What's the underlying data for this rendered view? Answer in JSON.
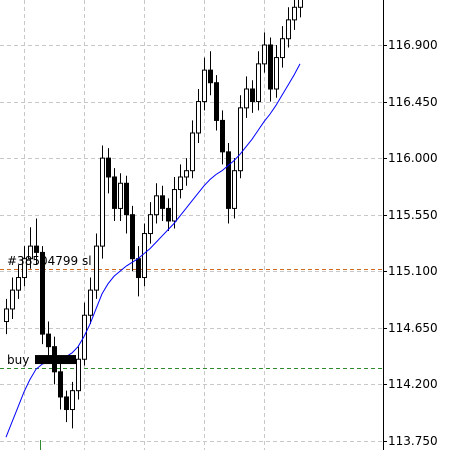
{
  "chart_data": {
    "type": "candlestick",
    "categories": [
      null,
      null,
      null,
      null,
      null,
      null,
      null,
      null,
      null,
      null,
      null,
      null,
      null,
      null,
      null,
      null,
      null,
      null,
      null,
      null,
      null,
      null,
      null,
      null,
      null,
      null,
      null,
      null,
      null,
      null,
      null,
      null,
      null,
      null,
      null,
      null,
      null,
      null,
      null,
      null,
      null,
      null,
      null,
      null,
      null,
      null,
      null,
      null,
      null,
      null
    ],
    "open": [
      114.7,
      114.8,
      114.95,
      115.05,
      115.2,
      115.3,
      115.25,
      114.6,
      114.5,
      114.3,
      114.1,
      114.0,
      114.15,
      114.4,
      114.75,
      114.95,
      115.3,
      116.0,
      115.85,
      115.6,
      115.8,
      115.55,
      115.2,
      115.05,
      115.4,
      115.55,
      115.7,
      115.6,
      115.5,
      115.75,
      115.85,
      115.9,
      116.2,
      116.45,
      116.7,
      116.6,
      116.3,
      116.05,
      115.6,
      115.9,
      116.4,
      116.55,
      116.45,
      116.75,
      116.9,
      116.55,
      116.8,
      116.95,
      117.1,
      117.2
    ],
    "high": [
      114.88,
      115.05,
      115.15,
      115.3,
      115.45,
      115.52,
      115.3,
      114.7,
      114.58,
      114.38,
      114.15,
      114.22,
      114.5,
      114.85,
      115.05,
      115.4,
      116.1,
      116.08,
      115.92,
      115.88,
      115.86,
      115.62,
      115.3,
      115.48,
      115.65,
      115.8,
      115.78,
      115.68,
      115.85,
      115.95,
      116.0,
      116.3,
      116.55,
      116.8,
      116.85,
      116.66,
      116.38,
      116.12,
      116.0,
      116.5,
      116.65,
      116.62,
      116.85,
      117.0,
      116.96,
      116.9,
      117.05,
      117.2,
      117.28,
      117.3
    ],
    "low": [
      114.6,
      114.72,
      114.88,
      114.98,
      115.12,
      115.15,
      114.52,
      114.4,
      114.2,
      114.0,
      113.9,
      113.85,
      114.08,
      114.35,
      114.68,
      114.88,
      115.2,
      115.72,
      115.5,
      115.5,
      115.4,
      115.1,
      114.9,
      114.98,
      115.32,
      115.48,
      115.5,
      115.42,
      115.44,
      115.68,
      115.78,
      115.84,
      116.12,
      116.38,
      116.5,
      116.22,
      115.95,
      115.48,
      115.52,
      115.84,
      116.32,
      116.36,
      116.38,
      116.68,
      116.45,
      116.48,
      116.72,
      116.88,
      117.02,
      117.12
    ],
    "close": [
      114.8,
      114.95,
      115.05,
      115.2,
      115.3,
      115.25,
      114.6,
      114.5,
      114.3,
      114.1,
      114.0,
      114.15,
      114.4,
      114.75,
      114.95,
      115.3,
      116.0,
      115.85,
      115.6,
      115.8,
      115.55,
      115.2,
      115.05,
      115.4,
      115.55,
      115.7,
      115.6,
      115.5,
      115.75,
      115.85,
      115.9,
      116.2,
      116.45,
      116.7,
      116.6,
      116.3,
      116.05,
      115.6,
      115.9,
      116.4,
      116.55,
      116.45,
      116.75,
      116.9,
      116.55,
      116.8,
      116.95,
      117.1,
      117.2,
      117.28
    ],
    "ma": {
      "color": "#0000ff",
      "values": [
        113.78,
        113.9,
        114.02,
        114.14,
        114.24,
        114.32,
        114.36,
        114.38,
        114.39,
        114.4,
        114.42,
        114.45,
        114.5,
        114.58,
        114.68,
        114.8,
        114.92,
        115.0,
        115.06,
        115.1,
        115.14,
        115.17,
        115.2,
        115.24,
        115.28,
        115.33,
        115.38,
        115.43,
        115.48,
        115.54,
        115.6,
        115.66,
        115.72,
        115.78,
        115.83,
        115.87,
        115.9,
        115.94,
        115.98,
        116.03,
        116.09,
        116.15,
        116.22,
        116.29,
        116.35,
        116.42,
        116.5,
        116.58,
        116.66,
        116.75
      ]
    },
    "levels": [
      {
        "label": "#38504799 sl",
        "value": 115.12,
        "color": "#d2691e"
      },
      {
        "label": "buy",
        "value": 114.33,
        "color": "#2e8b2e"
      }
    ],
    "ylim": [
      113.678,
      117.258
    ],
    "yticks": [
      {
        "value": 113.75,
        "label": "113.750"
      },
      {
        "value": 114.2,
        "label": "114.200"
      },
      {
        "value": 114.65,
        "label": "114.650"
      },
      {
        "value": 115.1,
        "label": "115.100"
      },
      {
        "value": 115.55,
        "label": "115.550"
      },
      {
        "value": 116.0,
        "label": "116.000"
      },
      {
        "value": 116.45,
        "label": "116.450"
      },
      {
        "value": 116.9,
        "label": "116.900"
      }
    ],
    "grid": true
  }
}
